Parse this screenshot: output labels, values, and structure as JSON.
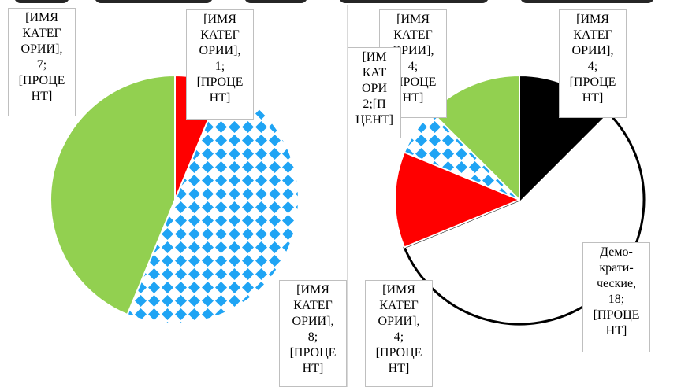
{
  "chart_data": [
    {
      "type": "pie",
      "categories": [
        "[ИМЯ КАТЕГОРИИ]",
        "[ИМЯ КАТЕГОРИИ]",
        "[ИМЯ КАТЕГОРИИ]"
      ],
      "values": [
        1,
        8,
        7
      ],
      "series": [
        {
          "values": [
            1,
            8,
            7
          ]
        }
      ],
      "slice_colors": [
        "#ff0000",
        "#1fa4f4",
        "#92d050"
      ],
      "slice_patterns": [
        "solid",
        "diamond-check",
        "solid"
      ],
      "labels": [
        {
          "text": "[ИМЯ\nКАТЕГ\nОРИИ],\n1;\n[ПРОЦЕ\nНТ]"
        },
        {
          "text": "[ИМЯ\nКАТЕГ\nОРИИ],\n8;\n[ПРОЦЕ\nНТ]"
        },
        {
          "text": "[ИМЯ\nКАТЕГ\nОРИИ],\n7;\n[ПРОЦЕ\nНТ]"
        }
      ]
    },
    {
      "type": "pie",
      "categories": [
        "[ИМЯ КАТЕГОРИИ]",
        "Демо-кратические",
        "[ИМЯ КАТЕГОРИИ]",
        "[ИМЯ КАТЕГОРИИ]",
        "[ИМЯ КАТЕГОРИИ]"
      ],
      "values": [
        4,
        18,
        4,
        2,
        4
      ],
      "series": [
        {
          "values": [
            4,
            18,
            4,
            2,
            4
          ]
        }
      ],
      "slice_colors": [
        "#000000",
        "#ffffff",
        "#ff0000",
        "#1fa4f4",
        "#92d050"
      ],
      "slice_patterns": [
        "solid",
        "outline",
        "solid",
        "diamond-check",
        "solid"
      ],
      "labels": [
        {
          "text": "[ИМЯ\nКАТЕГ\nОРИИ],\n4;\n[ПРОЦЕ\nНТ]"
        },
        {
          "text": "Демо-\nкрати-\nческие,\n18;\n[ПРОЦЕ\nНТ]"
        },
        {
          "text": "[ИМЯ\nКАТЕГ\nОРИИ],\n4;\n[ПРОЦЕ\nНТ]"
        },
        {
          "text": "[ИМ\nКАТ\nОРИ\n2;[П\nЦЕНТ]"
        },
        {
          "text": "[ИМЯ\nКАТЕГ\nОРИИ],\n4;\n[ПРОЦЕ\nНТ]"
        }
      ]
    }
  ]
}
